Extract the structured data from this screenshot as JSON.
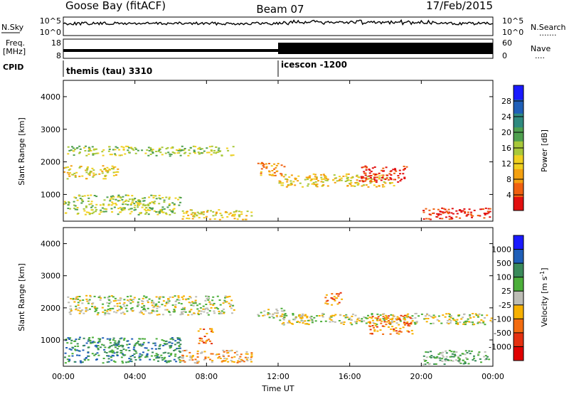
{
  "header": {
    "station": "Goose Bay (fitACF)",
    "beam": "Beam 07",
    "date": "17/Feb/2015"
  },
  "noise_panel": {
    "left_label": "N.Sky",
    "left_ticks": [
      "10^5",
      "10^0"
    ],
    "right_ticks": [
      "10^5",
      "10^0"
    ],
    "right_label": "N.Search",
    "right_dots": "......."
  },
  "freq_panel": {
    "left_label_line1": "Freq.",
    "left_label_line2": "[MHz]",
    "left_ticks": [
      "18",
      "8"
    ],
    "right_ticks": [
      "60",
      "0"
    ],
    "right_label": "Nave",
    "right_dots": "...."
  },
  "cpid": {
    "label": "CPID",
    "program1": "themis (tau) 3310",
    "program2": "icescon -1200",
    "switch_hour": 12
  },
  "chart_data": [
    {
      "type": "heatmap",
      "name": "power",
      "ylabel": "Slant Range [km]",
      "xlabel": "",
      "xlim": [
        0,
        24
      ],
      "ylim": [
        180,
        4500
      ],
      "y_ticks": [
        1000,
        2000,
        3000,
        4000
      ],
      "colorbar": {
        "label": "Power [dB]",
        "ticks": [
          "4",
          "8",
          "12",
          "16",
          "20",
          "24",
          "28"
        ],
        "colors": [
          "#1a1aff",
          "#1f5fb8",
          "#2f8a7f",
          "#4fa04f",
          "#a8c83a",
          "#f0d020",
          "#f4a010",
          "#f06010",
          "#e21010"
        ]
      },
      "regions": [
        {
          "t0": 0.2,
          "t1": 9.5,
          "r0": 2200,
          "r1": 2500,
          "level": 4
        },
        {
          "t0": 0.0,
          "t1": 3.0,
          "r0": 1500,
          "r1": 1900,
          "level": 5
        },
        {
          "t0": 0.0,
          "t1": 6.5,
          "r0": 400,
          "r1": 1000,
          "level": 4
        },
        {
          "t0": 6.5,
          "t1": 10.5,
          "r0": 250,
          "r1": 550,
          "level": 5
        },
        {
          "t0": 10.8,
          "t1": 12.3,
          "r0": 1600,
          "r1": 2000,
          "level": 6
        },
        {
          "t0": 12.0,
          "t1": 18.5,
          "r0": 1250,
          "r1": 1650,
          "level": 5
        },
        {
          "t0": 16.5,
          "t1": 19.2,
          "r0": 1400,
          "r1": 1900,
          "level": 8
        },
        {
          "t0": 20.0,
          "t1": 23.8,
          "r0": 250,
          "r1": 600,
          "level": 8
        }
      ]
    },
    {
      "type": "heatmap",
      "name": "velocity",
      "ylabel": "Slant Range [km]",
      "xlabel": "Time UT",
      "xlim": [
        0,
        24
      ],
      "ylim": [
        180,
        4500
      ],
      "y_ticks": [
        1000,
        2000,
        3000,
        4000
      ],
      "x_tick_labels": [
        "00:00",
        "04:00",
        "08:00",
        "12:00",
        "16:00",
        "20:00",
        "00:00"
      ],
      "colorbar": {
        "label": "Velocity [m s",
        "label_sup": "-1",
        "label_end": "]",
        "ticks": [
          "1000",
          "500",
          "100",
          "25",
          "-25",
          "-100",
          "-500",
          "-1000"
        ],
        "colors": [
          "#1a1aff",
          "#1f5fb8",
          "#3a8a5a",
          "#4caf3a",
          "#bcbcb4",
          "#f7b000",
          "#f36c10",
          "#e43010",
          "#e00000"
        ]
      },
      "regions": [
        {
          "t0": 0.2,
          "t1": 9.5,
          "r0": 1800,
          "r1": 2400,
          "level": 4
        },
        {
          "t0": 0.0,
          "t1": 6.5,
          "r0": 300,
          "r1": 1100,
          "level": 2
        },
        {
          "t0": 6.5,
          "t1": 10.5,
          "r0": 300,
          "r1": 700,
          "level": 5
        },
        {
          "t0": 7.5,
          "t1": 8.3,
          "r0": 900,
          "r1": 1400,
          "level": 6
        },
        {
          "t0": 10.8,
          "t1": 12.3,
          "r0": 1700,
          "r1": 2000,
          "level": 4
        },
        {
          "t0": 12.0,
          "t1": 24.0,
          "r0": 1500,
          "r1": 1850,
          "level": 4
        },
        {
          "t0": 14.5,
          "t1": 15.5,
          "r0": 2100,
          "r1": 2500,
          "level": 6
        },
        {
          "t0": 17.0,
          "t1": 19.5,
          "r0": 1200,
          "r1": 1800,
          "level": 6
        },
        {
          "t0": 20.0,
          "t1": 23.8,
          "r0": 250,
          "r1": 700,
          "level": 3
        }
      ]
    }
  ]
}
